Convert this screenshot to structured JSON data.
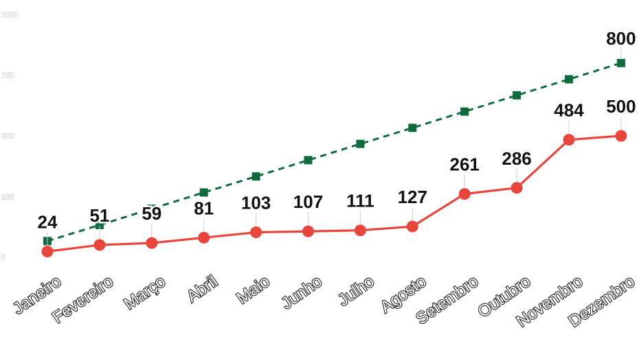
{
  "chart_data": {
    "type": "line",
    "categories": [
      "Janeiro",
      "Fevereiro",
      "Março",
      "Abril",
      "Maio",
      "Junho",
      "Julho",
      "Agosto",
      "Setembro",
      "Outubro",
      "Novembro",
      "Dezembro"
    ],
    "series": [
      {
        "values": [
          24,
          51,
          59,
          81,
          103,
          107,
          111,
          127,
          261,
          286,
          484,
          500
        ],
        "color": "#e8453c",
        "line_style": "solid",
        "marker": "circle",
        "data_labels": true
      },
      {
        "values": [
          67,
          133,
          200,
          267,
          333,
          400,
          467,
          533,
          600,
          667,
          733,
          800
        ],
        "color": "#0f6b3c",
        "line_style": "dashed",
        "marker": "square",
        "data_labels_shown": [
          "",
          "",
          "",
          "",
          "",
          "",
          "",
          "",
          "",
          "",
          "",
          "800"
        ]
      }
    ],
    "yticks": [
      0,
      250,
      500,
      750,
      1000
    ],
    "ytick_labels": [
      "0",
      "250",
      "500",
      "750",
      "1000"
    ],
    "ylim": [
      0,
      1000
    ],
    "grid": false,
    "legend": "none",
    "title": "",
    "xlabel": "",
    "ylabel": ""
  }
}
